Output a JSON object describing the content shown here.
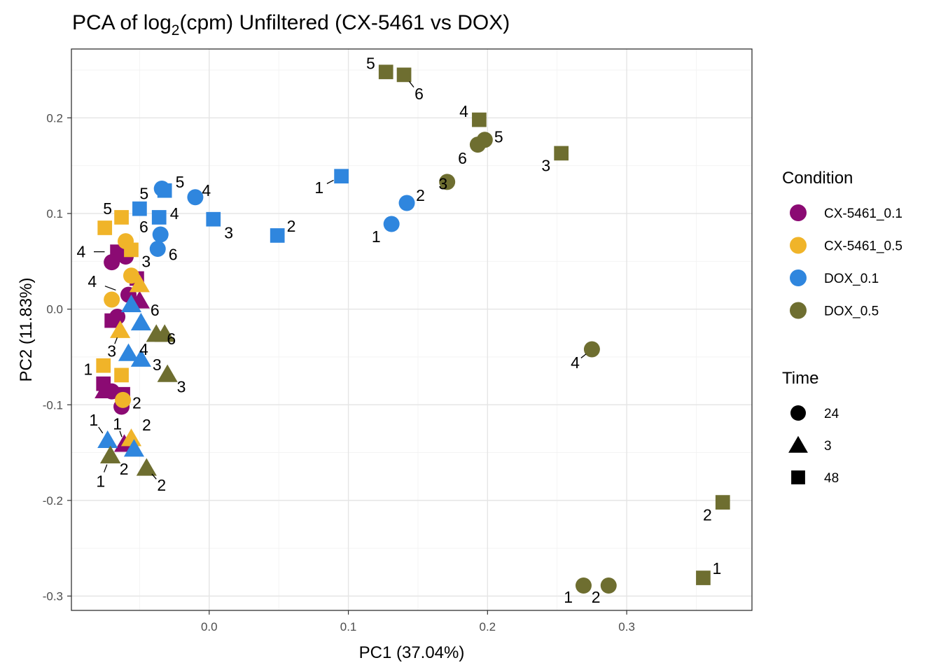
{
  "chart_data": {
    "type": "scatter",
    "title_main": "PCA of log",
    "title_sub": "2",
    "title_rest": "(cpm) Unfiltered (CX-5461 vs DOX)",
    "xlabel": "PC1 (37.04%)",
    "ylabel": "PC2 (11.83%)",
    "xlim": [
      -0.099,
      0.39
    ],
    "ylim": [
      -0.315,
      0.272
    ],
    "x_ticks": [
      {
        "value": 0.0,
        "label": "0.0"
      },
      {
        "value": 0.1,
        "label": "0.1"
      },
      {
        "value": 0.2,
        "label": "0.2"
      },
      {
        "value": 0.3,
        "label": "0.3"
      }
    ],
    "y_ticks": [
      {
        "value": 0.2,
        "label": "0.2"
      },
      {
        "value": 0.1,
        "label": "0.1"
      },
      {
        "value": 0.0,
        "label": "0.0"
      },
      {
        "value": -0.1,
        "label": "-0.1"
      },
      {
        "value": -0.2,
        "label": "-0.2"
      },
      {
        "value": -0.3,
        "label": "-0.3"
      }
    ],
    "grid": true,
    "legend_placement": "right",
    "legend": {
      "condition_title": "Condition",
      "conditions": [
        {
          "name": "CX-5461_0.1",
          "color": "#8B0A73"
        },
        {
          "name": "CX-5461_0.5",
          "color": "#F0B429"
        },
        {
          "name": "DOX_0.1",
          "color": "#2F86DE"
        },
        {
          "name": "DOX_0.5",
          "color": "#6E6E30"
        }
      ],
      "time_title": "Time",
      "times": [
        {
          "name": "24",
          "shape": "circle"
        },
        {
          "name": "3",
          "shape": "triangle"
        },
        {
          "name": "48",
          "shape": "square"
        }
      ]
    },
    "points": [
      {
        "x": -0.066,
        "y": 0.06,
        "c": 0,
        "s": 2,
        "label": "4",
        "dx": -0.026,
        "dy": 0.0
      },
      {
        "x": -0.07,
        "y": 0.049,
        "c": 0,
        "s": 0,
        "label": "",
        "dx": 0,
        "dy": 0
      },
      {
        "x": -0.06,
        "y": 0.055,
        "c": 0,
        "s": 0,
        "label": "",
        "dx": 0,
        "dy": 0
      },
      {
        "x": -0.052,
        "y": 0.032,
        "c": 0,
        "s": 2,
        "label": "3",
        "dx": 0.0067,
        "dy": 0.018
      },
      {
        "x": -0.058,
        "y": 0.015,
        "c": 0,
        "s": 0,
        "label": "4",
        "dx": -0.026,
        "dy": 0.014
      },
      {
        "x": -0.05,
        "y": 0.009,
        "c": 0,
        "s": 1,
        "label": "6",
        "dx": 0.011,
        "dy": -0.01
      },
      {
        "x": -0.07,
        "y": -0.012,
        "c": 0,
        "s": 2,
        "label": "",
        "dx": 0,
        "dy": 0
      },
      {
        "x": -0.066,
        "y": -0.008,
        "c": 0,
        "s": 0,
        "label": "",
        "dx": 0,
        "dy": 0
      },
      {
        "x": -0.076,
        "y": -0.078,
        "c": 0,
        "s": 2,
        "label": "",
        "dx": 0,
        "dy": 0
      },
      {
        "x": -0.07,
        "y": -0.086,
        "c": 0,
        "s": 0,
        "label": "",
        "dx": 0,
        "dy": 0
      },
      {
        "x": -0.063,
        "y": -0.102,
        "c": 0,
        "s": 0,
        "label": "",
        "dx": 0,
        "dy": 0
      },
      {
        "x": -0.062,
        "y": -0.089,
        "c": 0,
        "s": 2,
        "label": "2",
        "dx": 0.01,
        "dy": -0.009
      },
      {
        "x": -0.061,
        "y": -0.141,
        "c": 0,
        "s": 1,
        "label": "1",
        "dx": -0.005,
        "dy": 0.021
      },
      {
        "x": -0.075,
        "y": -0.085,
        "c": 0,
        "s": 1,
        "label": "",
        "dx": 0,
        "dy": 0
      },
      {
        "x": -0.075,
        "y": 0.085,
        "c": 1,
        "s": 2,
        "label": "",
        "dx": 0,
        "dy": 0
      },
      {
        "x": -0.063,
        "y": 0.096,
        "c": 1,
        "s": 2,
        "label": "5",
        "dx": -0.01,
        "dy": 0.009
      },
      {
        "x": -0.06,
        "y": 0.071,
        "c": 1,
        "s": 0,
        "label": "",
        "dx": 0,
        "dy": 0
      },
      {
        "x": -0.056,
        "y": 0.062,
        "c": 1,
        "s": 2,
        "label": "",
        "dx": 0,
        "dy": 0
      },
      {
        "x": -0.056,
        "y": 0.035,
        "c": 1,
        "s": 0,
        "label": "",
        "dx": 0,
        "dy": 0
      },
      {
        "x": -0.05,
        "y": 0.026,
        "c": 1,
        "s": 1,
        "label": "",
        "dx": 0,
        "dy": 0
      },
      {
        "x": -0.07,
        "y": 0.01,
        "c": 1,
        "s": 0,
        "label": "",
        "dx": 0,
        "dy": 0
      },
      {
        "x": -0.064,
        "y": -0.022,
        "c": 1,
        "s": 1,
        "label": "3",
        "dx": -0.006,
        "dy": -0.022
      },
      {
        "x": -0.076,
        "y": -0.059,
        "c": 1,
        "s": 2,
        "label": "1",
        "dx": -0.011,
        "dy": -0.004
      },
      {
        "x": -0.063,
        "y": -0.069,
        "c": 1,
        "s": 2,
        "label": "",
        "dx": 0,
        "dy": 0
      },
      {
        "x": -0.062,
        "y": -0.095,
        "c": 1,
        "s": 0,
        "label": "",
        "dx": 0,
        "dy": 0
      },
      {
        "x": -0.056,
        "y": -0.135,
        "c": 1,
        "s": 1,
        "label": "2",
        "dx": 0.011,
        "dy": 0.014
      },
      {
        "x": -0.034,
        "y": 0.126,
        "c": 2,
        "s": 0,
        "label": "",
        "dx": 0,
        "dy": 0
      },
      {
        "x": -0.032,
        "y": 0.124,
        "c": 2,
        "s": 2,
        "label": "5",
        "dx": 0.011,
        "dy": 0.009
      },
      {
        "x": -0.05,
        "y": 0.105,
        "c": 2,
        "s": 2,
        "label": "5",
        "dx": 0.0032,
        "dy": 0.016
      },
      {
        "x": -0.01,
        "y": 0.117,
        "c": 2,
        "s": 0,
        "label": "4",
        "dx": 0.008,
        "dy": 0.007
      },
      {
        "x": -0.036,
        "y": 0.096,
        "c": 2,
        "s": 2,
        "label": "4",
        "dx": 0.011,
        "dy": 0.004
      },
      {
        "x": -0.035,
        "y": 0.078,
        "c": 2,
        "s": 0,
        "label": "6",
        "dx": -0.012,
        "dy": 0.008
      },
      {
        "x": -0.037,
        "y": 0.063,
        "c": 2,
        "s": 0,
        "label": "6",
        "dx": 0.011,
        "dy": -0.006
      },
      {
        "x": 0.003,
        "y": 0.094,
        "c": 2,
        "s": 2,
        "label": "3",
        "dx": 0.011,
        "dy": -0.014
      },
      {
        "x": 0.049,
        "y": 0.077,
        "c": 2,
        "s": 2,
        "label": "2",
        "dx": 0.01,
        "dy": 0.01
      },
      {
        "x": 0.095,
        "y": 0.139,
        "c": 2,
        "s": 2,
        "label": "1",
        "dx": -0.016,
        "dy": -0.012
      },
      {
        "x": 0.131,
        "y": 0.089,
        "c": 2,
        "s": 0,
        "label": "1",
        "dx": -0.011,
        "dy": -0.013
      },
      {
        "x": 0.142,
        "y": 0.111,
        "c": 2,
        "s": 0,
        "label": "2",
        "dx": 0.0098,
        "dy": 0.008
      },
      {
        "x": -0.056,
        "y": 0.005,
        "c": 2,
        "s": 1,
        "label": "",
        "dx": 0,
        "dy": 0
      },
      {
        "x": -0.049,
        "y": -0.014,
        "c": 2,
        "s": 1,
        "label": "",
        "dx": 0,
        "dy": 0
      },
      {
        "x": -0.058,
        "y": -0.046,
        "c": 2,
        "s": 1,
        "label": "4",
        "dx": 0.011,
        "dy": 0.004
      },
      {
        "x": -0.073,
        "y": -0.137,
        "c": 2,
        "s": 1,
        "label": "1",
        "dx": -0.01,
        "dy": 0.021
      },
      {
        "x": -0.054,
        "y": -0.146,
        "c": 2,
        "s": 1,
        "label": "",
        "dx": 0,
        "dy": 0
      },
      {
        "x": 0.127,
        "y": 0.248,
        "c": 3,
        "s": 2,
        "label": "5",
        "dx": -0.011,
        "dy": 0.009
      },
      {
        "x": 0.14,
        "y": 0.245,
        "c": 3,
        "s": 2,
        "label": "6",
        "dx": 0.0108,
        "dy": -0.02
      },
      {
        "x": 0.194,
        "y": 0.198,
        "c": 3,
        "s": 2,
        "label": "4",
        "dx": -0.011,
        "dy": 0.009
      },
      {
        "x": 0.198,
        "y": 0.177,
        "c": 3,
        "s": 0,
        "label": "5",
        "dx": 0.01,
        "dy": 0.003
      },
      {
        "x": 0.193,
        "y": 0.172,
        "c": 3,
        "s": 0,
        "label": "6",
        "dx": -0.011,
        "dy": -0.014
      },
      {
        "x": 0.253,
        "y": 0.163,
        "c": 3,
        "s": 2,
        "label": "3",
        "dx": -0.011,
        "dy": -0.013
      },
      {
        "x": 0.171,
        "y": 0.133,
        "c": 3,
        "s": 0,
        "label": "3",
        "dx": -0.003,
        "dy": -0.002
      },
      {
        "x": 0.275,
        "y": -0.042,
        "c": 3,
        "s": 0,
        "label": "4",
        "dx": -0.012,
        "dy": -0.014
      },
      {
        "x": 0.369,
        "y": -0.202,
        "c": 3,
        "s": 2,
        "label": "2",
        "dx": -0.011,
        "dy": -0.013
      },
      {
        "x": 0.355,
        "y": -0.281,
        "c": 3,
        "s": 2,
        "label": "1",
        "dx": 0.0098,
        "dy": 0.01
      },
      {
        "x": 0.269,
        "y": -0.289,
        "c": 3,
        "s": 0,
        "label": "1",
        "dx": -0.011,
        "dy": -0.012
      },
      {
        "x": 0.287,
        "y": -0.289,
        "c": 3,
        "s": 0,
        "label": "2",
        "dx": -0.0091,
        "dy": -0.012
      },
      {
        "x": -0.038,
        "y": -0.026,
        "c": 3,
        "s": 1,
        "label": "6",
        "dx": 0.0108,
        "dy": -0.005
      },
      {
        "x": -0.032,
        "y": -0.026,
        "c": 3,
        "s": 1,
        "label": "",
        "dx": 0,
        "dy": 0
      },
      {
        "x": -0.03,
        "y": -0.068,
        "c": 3,
        "s": 1,
        "label": "3",
        "dx": 0.01,
        "dy": -0.013
      },
      {
        "x": -0.045,
        "y": -0.166,
        "c": 3,
        "s": 1,
        "label": "2",
        "dx": 0.0108,
        "dy": -0.018
      },
      {
        "x": -0.071,
        "y": -0.153,
        "c": 3,
        "s": 1,
        "label": "2",
        "dx": 0.0098,
        "dy": -0.014
      },
      {
        "x": -0.071,
        "y": -0.153,
        "c": 3,
        "s": 1,
        "label": "1",
        "dx": -0.007,
        "dy": -0.027
      },
      {
        "x": -0.049,
        "y": -0.052,
        "c": 2,
        "s": 1,
        "label": "3",
        "dx": 0.0115,
        "dy": -0.006
      }
    ]
  }
}
